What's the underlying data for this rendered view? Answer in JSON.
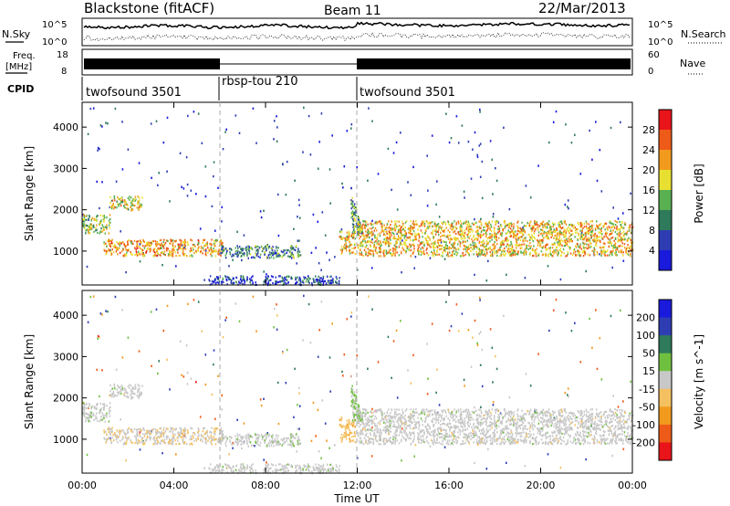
{
  "header": {
    "station": "Blackstone (fitACF)",
    "beam": "Beam 11",
    "date": "22/Mar/2013"
  },
  "noise_panel": {
    "left_label": "N.Sky",
    "right_label": "N.Search",
    "left_ticks": [
      "10^5",
      "10^0"
    ],
    "right_ticks": [
      "10^5",
      "10^0"
    ]
  },
  "freq_panel": {
    "left_label_1": "Freq.",
    "left_label_2": "[MHz]",
    "right_label": "Nave",
    "left_ticks": [
      "18",
      "8"
    ],
    "right_ticks": [
      "60",
      "0"
    ]
  },
  "cpid": {
    "label": "CPID",
    "segments": [
      {
        "name": "twofsound 3501",
        "start_hour": 0,
        "end_hour": 6
      },
      {
        "name": "rbsp-tou 210",
        "start_hour": 6,
        "end_hour": 12
      },
      {
        "name": "twofsound 3501",
        "start_hour": 12,
        "end_hour": 24
      }
    ]
  },
  "x_axis": {
    "label": "Time UT",
    "ticks": [
      "00:00",
      "04:00",
      "08:00",
      "12:00",
      "16:00",
      "20:00",
      "00:00"
    ],
    "range_hours": [
      0,
      24
    ]
  },
  "power_panel": {
    "ylabel": "Slant Range [km]",
    "yticks": [
      "1000",
      "2000",
      "3000",
      "4000"
    ],
    "colorbar_label": "Power [dB]",
    "colorbar_ticks": [
      "28",
      "24",
      "20",
      "16",
      "12",
      "8",
      "4"
    ]
  },
  "velocity_panel": {
    "ylabel": "Slant Range [km]",
    "yticks": [
      "1000",
      "2000",
      "3000",
      "4000"
    ],
    "colorbar_label": "Velocity [m s^-1]",
    "colorbar_ticks": [
      "200",
      "100",
      "50",
      "15",
      "-15",
      "-50",
      "-100",
      "-200"
    ]
  },
  "chart_data": {
    "type": "heatmap",
    "title": "Blackstone (fitACF)",
    "xlabel": "Time UT",
    "ylabel": "Slant Range [km]",
    "xlim": [
      0,
      24
    ],
    "ylim": [
      180,
      4600
    ],
    "power_color_range": [
      0,
      32
    ],
    "velocity_color_range": [
      -250,
      250
    ],
    "power_colors": [
      "#1a1adc",
      "#2e3db2",
      "#2e7a5a",
      "#58b050",
      "#e8e030",
      "#f29a1e",
      "#ee5a18",
      "#e8141a"
    ],
    "velocity_colors": [
      "#e8141a",
      "#ee5a18",
      "#f29a1e",
      "#f4c060",
      "#c8c8c8",
      "#70c040",
      "#2e7a5a",
      "#2e3db2",
      "#1a1adc"
    ],
    "echo_regions": [
      {
        "start_hour": 0.0,
        "end_hour": 1.2,
        "range_km": [
          1450,
          1900
        ],
        "power_db": 16,
        "velocity": 5
      },
      {
        "start_hour": 1.2,
        "end_hour": 2.6,
        "range_km": [
          2000,
          2350
        ],
        "power_db": 18,
        "velocity": 0
      },
      {
        "start_hour": 0.9,
        "end_hour": 6.2,
        "range_km": [
          900,
          1300
        ],
        "power_db": 22,
        "velocity": -20
      },
      {
        "start_hour": 6.0,
        "end_hour": 9.5,
        "range_km": [
          850,
          1150
        ],
        "power_db": 10,
        "velocity": 5
      },
      {
        "start_hour": 5.5,
        "end_hour": 11.2,
        "range_km": [
          200,
          420
        ],
        "power_db": 6,
        "velocity": 2
      },
      {
        "start_hour": 11.2,
        "end_hour": 11.9,
        "range_km": [
          950,
          1500
        ],
        "power_db": 20,
        "velocity": -60
      },
      {
        "start_hour": 11.7,
        "end_hour": 12.2,
        "range_km": [
          1500,
          2600
        ],
        "power_db": 12,
        "velocity": 40
      },
      {
        "start_hour": 12.0,
        "end_hour": 24.0,
        "range_km": [
          900,
          1750
        ],
        "power_db": 20,
        "velocity": 0
      }
    ]
  }
}
